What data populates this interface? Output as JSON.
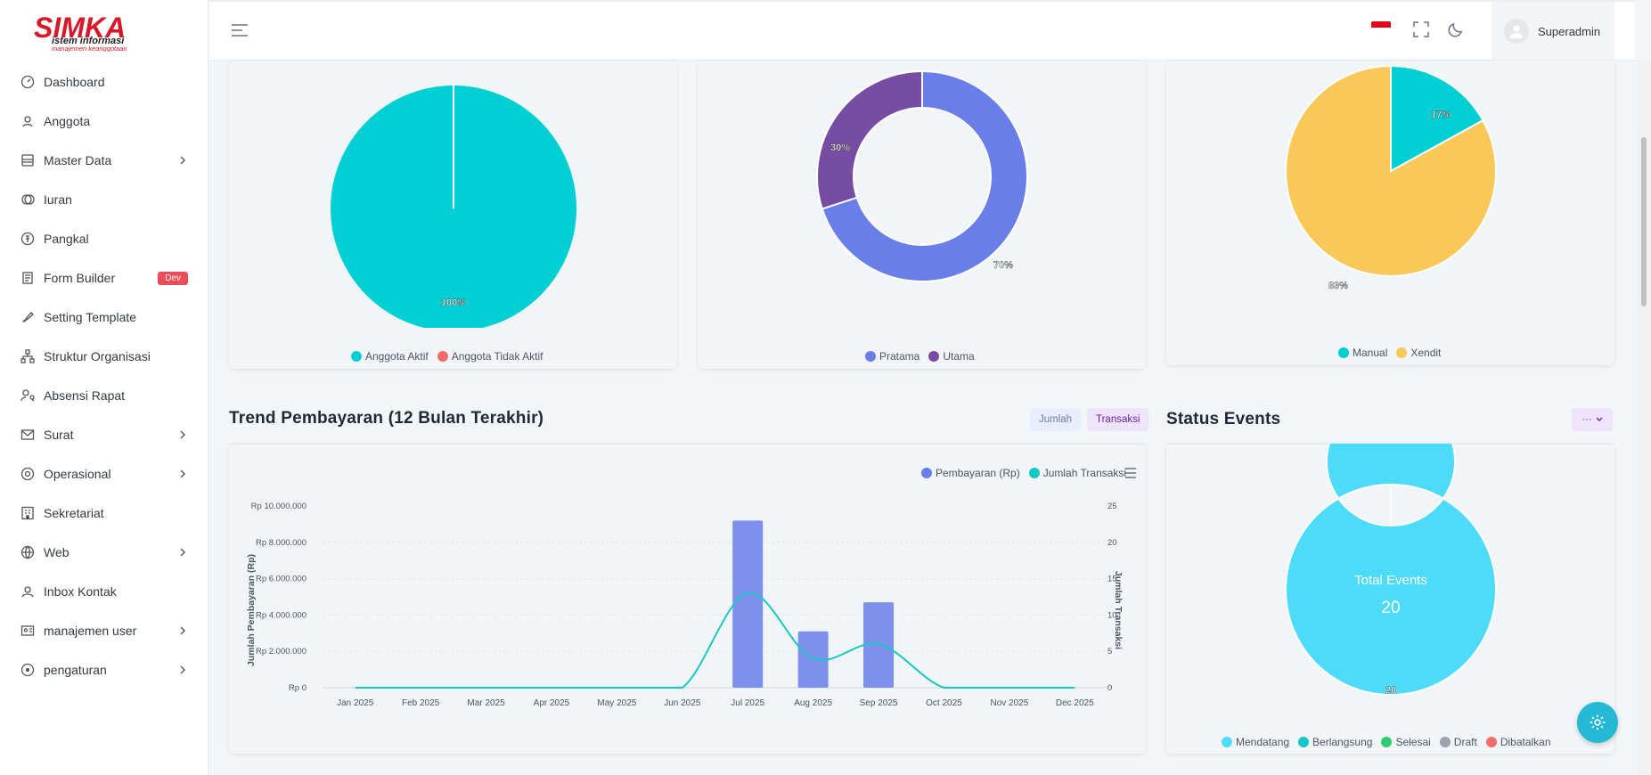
{
  "brand": {
    "name": "SIMKA",
    "tagline1": "istem informasi",
    "tagline2": "manajemen keanggotaan"
  },
  "sidebar": {
    "items": [
      {
        "label": "Dashboard",
        "icon": "dashboard-icon",
        "chevron": false
      },
      {
        "label": "Anggota",
        "icon": "user-pin-icon",
        "chevron": false
      },
      {
        "label": "Master Data",
        "icon": "database-icon",
        "chevron": true
      },
      {
        "label": "Iuran",
        "icon": "coins-icon",
        "chevron": false
      },
      {
        "label": "Pangkal",
        "icon": "currency-icon",
        "chevron": false
      },
      {
        "label": "Form Builder",
        "icon": "form-icon",
        "chevron": false,
        "badge": "Dev"
      },
      {
        "label": "Setting Template",
        "icon": "brush-icon",
        "chevron": false
      },
      {
        "label": "Struktur Organisasi",
        "icon": "org-icon",
        "chevron": false
      },
      {
        "label": "Absensi Rapat",
        "icon": "user-search-icon",
        "chevron": false
      },
      {
        "label": "Surat",
        "icon": "mail-icon",
        "chevron": true
      },
      {
        "label": "Operasional",
        "icon": "gear-circle-icon",
        "chevron": true
      },
      {
        "label": "Sekretariat",
        "icon": "building-icon",
        "chevron": false
      },
      {
        "label": "Web",
        "icon": "globe-icon",
        "chevron": true
      },
      {
        "label": "Inbox Kontak",
        "icon": "contact-icon",
        "chevron": false
      },
      {
        "label": "manajemen user",
        "icon": "id-card-icon",
        "chevron": true
      },
      {
        "label": "pengaturan",
        "icon": "settings-icon",
        "chevron": true
      }
    ]
  },
  "topbar": {
    "user_name": "Superadmin"
  },
  "colors": {
    "teal": "#00d0d3",
    "indigo": "#6a7ee9",
    "purple": "#764da3",
    "yellow": "#fac858",
    "sky": "#4cdbf9",
    "red": "#f26b6b"
  },
  "pie_anggota": {
    "slices": [
      {
        "label": "Anggota Aktif",
        "value": 100,
        "color": "#00d0d3"
      },
      {
        "label": "Anggota Tidak Aktif",
        "value": 0,
        "color": "#f26b6b"
      }
    ],
    "data_label": "100%",
    "legend": [
      "Anggota Aktif",
      "Anggota Tidak Aktif"
    ]
  },
  "donut_level": {
    "slices": [
      {
        "label": "Pratama",
        "value": 70,
        "color": "#6a7ee9"
      },
      {
        "label": "Utama",
        "value": 30,
        "color": "#764da3"
      }
    ],
    "labels": [
      "70%",
      "30%"
    ],
    "legend": [
      "Pratama",
      "Utama"
    ]
  },
  "pie_payment": {
    "slices": [
      {
        "label": "Manual",
        "value": 17,
        "color": "#00d0d3"
      },
      {
        "label": "Xendit",
        "value": 83,
        "color": "#fac858"
      }
    ],
    "labels": [
      "17%",
      "83%"
    ],
    "legend": [
      "Manual",
      "Xendit"
    ]
  },
  "trend": {
    "title": "Trend Pembayaran (12 Bulan Terakhir)",
    "btn_jumlah": "Jumlah",
    "btn_transaksi": "Transaksi",
    "legend": [
      "Pembayaran (Rp)",
      "Jumlah Transaksi"
    ],
    "ylabel_left": "Jumlah Pembayaran (Rp)",
    "ylabel_right": "Jumlah Transaksi",
    "left_ticks": [
      "Rp 10.000.000",
      "Rp 8.000.000",
      "Rp 6.000.000",
      "Rp 4.000.000",
      "Rp 2.000.000",
      "Rp 0"
    ],
    "right_ticks": [
      "25",
      "20",
      "15",
      "10",
      "5",
      "0"
    ]
  },
  "chart_data": {
    "type": "bar",
    "title": "Trend Pembayaran (12 Bulan Terakhir)",
    "categories": [
      "Jan 2025",
      "Feb 2025",
      "Mar 2025",
      "Apr 2025",
      "May 2025",
      "Jun 2025",
      "Jul 2025",
      "Aug 2025",
      "Sep 2025",
      "Oct 2025",
      "Nov 2025",
      "Dec 2025"
    ],
    "series": [
      {
        "name": "Pembayaran (Rp)",
        "type": "bar",
        "axis": "left",
        "values": [
          0,
          0,
          0,
          0,
          0,
          0,
          9200000,
          3100000,
          4700000,
          0,
          0,
          0
        ]
      },
      {
        "name": "Jumlah Transaksi",
        "type": "line",
        "axis": "right",
        "values": [
          0,
          0,
          0,
          0,
          0,
          0,
          13,
          4,
          6,
          0,
          0,
          0
        ]
      }
    ],
    "ylim_left": [
      0,
      10000000
    ],
    "ylim_right": [
      0,
      25
    ],
    "xlabel": "",
    "ylabel": "Jumlah Pembayaran (Rp)"
  },
  "events": {
    "title": "Status Events",
    "dropdown": "···",
    "center_label": "Total Events",
    "center_value": "20",
    "data_label": "20",
    "slices": [
      {
        "label": "Mendatang",
        "value": 20,
        "color": "#4cdbf9"
      }
    ],
    "legend": [
      {
        "label": "Mendatang",
        "color": "#4cdbf9"
      },
      {
        "label": "Berlangsung",
        "color": "#14c8c4"
      },
      {
        "label": "Selesai",
        "color": "#2ecc71"
      },
      {
        "label": "Draft",
        "color": "#9ca3af"
      },
      {
        "label": "Dibatalkan",
        "color": "#f26b6b"
      }
    ]
  }
}
